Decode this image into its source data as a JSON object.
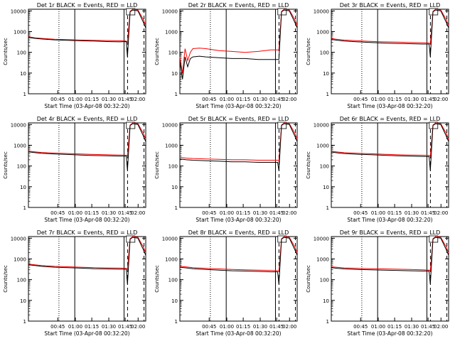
{
  "figure": {
    "tick_labels": [
      "00:45",
      "01:00",
      "01:15",
      "01:30",
      "01:45",
      "02:00"
    ],
    "ylabel": "Counts/sec",
    "xlabel": "Start Time (03-Apr-08 00:32:20)",
    "y_tick_labels": [
      "1",
      "10",
      "100",
      "1000",
      "10000"
    ],
    "colors": {
      "events": "#000000",
      "lld": "#ff0000"
    }
  },
  "chart_data": [
    {
      "type": "line",
      "title": "Det 1r BLACK = Events, RED = LLD",
      "xlabel": "Start Time (03-Apr-08 00:32:20)",
      "ylabel": "Counts/sec",
      "log_y": true,
      "ylim": [
        1,
        12000
      ],
      "x_unit": "minutes since 00:32:20",
      "xlim": [
        0,
        90
      ],
      "x": [
        0,
        5,
        10,
        20,
        30,
        40,
        50,
        60,
        70,
        75,
        76,
        78,
        80,
        84,
        88,
        90
      ],
      "series": [
        {
          "name": "Events",
          "values": [
            520,
            470,
            440,
            400,
            380,
            360,
            350,
            330,
            320,
            330,
            60,
            9000,
            11000,
            10000,
            3000,
            1500
          ]
        },
        {
          "name": "LLD",
          "values": [
            560,
            500,
            470,
            430,
            410,
            390,
            380,
            370,
            360,
            350,
            300,
            9500,
            12000,
            11000,
            4000,
            2000
          ]
        }
      ]
    },
    {
      "type": "line",
      "title": "Det 2r BLACK = Events, RED = LLD",
      "xlabel": "Start Time (03-Apr-08 00:32:20)",
      "ylabel": "Counts/sec",
      "log_y": true,
      "ylim": [
        1,
        12000
      ],
      "x_unit": "minutes since 00:32:20",
      "xlim": [
        0,
        90
      ],
      "x": [
        0,
        2,
        4,
        6,
        8,
        10,
        15,
        20,
        30,
        40,
        50,
        60,
        70,
        75,
        76,
        78,
        80,
        84,
        88,
        90
      ],
      "series": [
        {
          "name": "Events",
          "values": [
            40,
            5,
            60,
            20,
            50,
            60,
            65,
            60,
            55,
            50,
            50,
            45,
            45,
            45,
            45,
            9000,
            11000,
            10000,
            3000,
            1500
          ]
        },
        {
          "name": "LLD",
          "values": [
            60,
            10,
            150,
            40,
            100,
            150,
            160,
            150,
            120,
            110,
            100,
            110,
            130,
            130,
            130,
            9500,
            12000,
            11000,
            4000,
            2000
          ]
        }
      ]
    },
    {
      "type": "line",
      "title": "Det 3r BLACK = Events, RED = LLD",
      "xlabel": "Start Time (03-Apr-08 00:32:20)",
      "ylabel": "Counts/sec",
      "log_y": true,
      "ylim": [
        1,
        12000
      ],
      "x_unit": "minutes since 00:32:20",
      "xlim": [
        0,
        90
      ],
      "x": [
        0,
        5,
        10,
        20,
        30,
        40,
        50,
        60,
        70,
        75,
        76,
        78,
        80,
        84,
        88,
        90
      ],
      "series": [
        {
          "name": "Events",
          "values": [
            420,
            380,
            350,
            320,
            300,
            280,
            270,
            260,
            250,
            250,
            60,
            9000,
            11000,
            10000,
            3000,
            1500
          ]
        },
        {
          "name": "LLD",
          "values": [
            460,
            420,
            390,
            360,
            340,
            320,
            310,
            300,
            290,
            280,
            250,
            9500,
            12000,
            11000,
            4000,
            2000
          ]
        }
      ]
    },
    {
      "type": "line",
      "title": "Det 4r BLACK = Events, RED = LLD",
      "xlabel": "Start Time (03-Apr-08 00:32:20)",
      "ylabel": "Counts/sec",
      "log_y": true,
      "ylim": [
        1,
        12000
      ],
      "x_unit": "minutes since 00:32:20",
      "xlim": [
        0,
        90
      ],
      "x": [
        0,
        5,
        10,
        20,
        30,
        40,
        50,
        60,
        70,
        75,
        76,
        78,
        80,
        84,
        88,
        90
      ],
      "series": [
        {
          "name": "Events",
          "values": [
            480,
            440,
            410,
            380,
            360,
            340,
            320,
            310,
            300,
            300,
            60,
            9000,
            11000,
            10000,
            3000,
            1500
          ]
        },
        {
          "name": "LLD",
          "values": [
            520,
            480,
            450,
            420,
            400,
            380,
            360,
            350,
            340,
            330,
            300,
            9500,
            12000,
            11000,
            4000,
            2000
          ]
        }
      ]
    },
    {
      "type": "line",
      "title": "Det 5r BLACK = Events, RED = LLD",
      "xlabel": "Start Time (03-Apr-08 00:32:20)",
      "ylabel": "Counts/sec",
      "log_y": true,
      "ylim": [
        1,
        12000
      ],
      "x_unit": "minutes since 00:32:20",
      "xlim": [
        0,
        90
      ],
      "x": [
        0,
        5,
        10,
        20,
        30,
        40,
        50,
        60,
        70,
        75,
        76,
        78,
        80,
        84,
        88,
        90
      ],
      "series": [
        {
          "name": "Events",
          "values": [
            220,
            200,
            190,
            180,
            170,
            160,
            160,
            150,
            150,
            150,
            60,
            9000,
            11000,
            10000,
            3000,
            1500
          ]
        },
        {
          "name": "LLD",
          "values": [
            260,
            240,
            230,
            220,
            210,
            200,
            200,
            190,
            190,
            190,
            180,
            9500,
            12000,
            11000,
            4000,
            2000
          ]
        }
      ]
    },
    {
      "type": "line",
      "title": "Det 6r BLACK = Events, RED = LLD",
      "xlabel": "Start Time (03-Apr-08 00:32:20)",
      "ylabel": "Counts/sec",
      "log_y": true,
      "ylim": [
        1,
        12000
      ],
      "x_unit": "minutes since 00:32:20",
      "xlim": [
        0,
        90
      ],
      "x": [
        0,
        5,
        10,
        20,
        30,
        40,
        50,
        60,
        70,
        75,
        76,
        78,
        80,
        84,
        88,
        90
      ],
      "series": [
        {
          "name": "Events",
          "values": [
            470,
            430,
            400,
            370,
            350,
            330,
            310,
            300,
            290,
            290,
            60,
            9000,
            11000,
            10000,
            3000,
            1500
          ]
        },
        {
          "name": "LLD",
          "values": [
            510,
            470,
            440,
            410,
            390,
            370,
            350,
            340,
            330,
            320,
            300,
            9500,
            12000,
            11000,
            4000,
            2000
          ]
        }
      ]
    },
    {
      "type": "line",
      "title": "Det 7r BLACK = Events, RED = LLD",
      "xlabel": "Start Time (03-Apr-08 00:32:20)",
      "ylabel": "Counts/sec",
      "log_y": true,
      "ylim": [
        1,
        12000
      ],
      "x_unit": "minutes since 00:32:20",
      "xlim": [
        0,
        90
      ],
      "x": [
        0,
        5,
        10,
        20,
        30,
        40,
        50,
        60,
        70,
        75,
        76,
        78,
        80,
        84,
        88,
        90
      ],
      "series": [
        {
          "name": "Events",
          "values": [
            520,
            480,
            440,
            400,
            380,
            360,
            340,
            330,
            320,
            320,
            60,
            9000,
            11000,
            10000,
            3000,
            1500
          ]
        },
        {
          "name": "LLD",
          "values": [
            560,
            520,
            480,
            440,
            420,
            400,
            380,
            370,
            360,
            350,
            320,
            9500,
            12000,
            11000,
            4000,
            2000
          ]
        }
      ]
    },
    {
      "type": "line",
      "title": "Det 8r BLACK = Events, RED = LLD",
      "xlabel": "Start Time (03-Apr-08 00:32:20)",
      "ylabel": "Counts/sec",
      "log_y": true,
      "ylim": [
        1,
        12000
      ],
      "x_unit": "minutes since 00:32:20",
      "xlim": [
        0,
        90
      ],
      "x": [
        0,
        5,
        10,
        20,
        30,
        40,
        50,
        60,
        70,
        75,
        76,
        78,
        80,
        84,
        88,
        90
      ],
      "series": [
        {
          "name": "Events",
          "values": [
            400,
            370,
            340,
            310,
            290,
            270,
            260,
            250,
            240,
            240,
            60,
            9000,
            11000,
            10000,
            3000,
            1500
          ]
        },
        {
          "name": "LLD",
          "values": [
            440,
            410,
            380,
            350,
            330,
            310,
            300,
            290,
            280,
            270,
            250,
            9500,
            12000,
            11000,
            4000,
            2000
          ]
        }
      ]
    },
    {
      "type": "line",
      "title": "Det 9r BLACK = Events, RED = LLD",
      "xlabel": "Start Time (03-Apr-08 00:32:20)",
      "ylabel": "Counts/sec",
      "log_y": true,
      "ylim": [
        1,
        12000
      ],
      "x_unit": "minutes since 00:32:20",
      "xlim": [
        0,
        90
      ],
      "x": [
        0,
        5,
        10,
        20,
        30,
        40,
        50,
        60,
        70,
        75,
        76,
        78,
        80,
        84,
        88,
        90
      ],
      "series": [
        {
          "name": "Events",
          "values": [
            380,
            350,
            330,
            310,
            300,
            290,
            280,
            270,
            260,
            260,
            60,
            9000,
            11000,
            10000,
            3000,
            1500
          ]
        },
        {
          "name": "LLD",
          "values": [
            420,
            390,
            370,
            350,
            340,
            330,
            320,
            310,
            300,
            290,
            270,
            9500,
            12000,
            11000,
            4000,
            2000
          ]
        }
      ]
    }
  ]
}
